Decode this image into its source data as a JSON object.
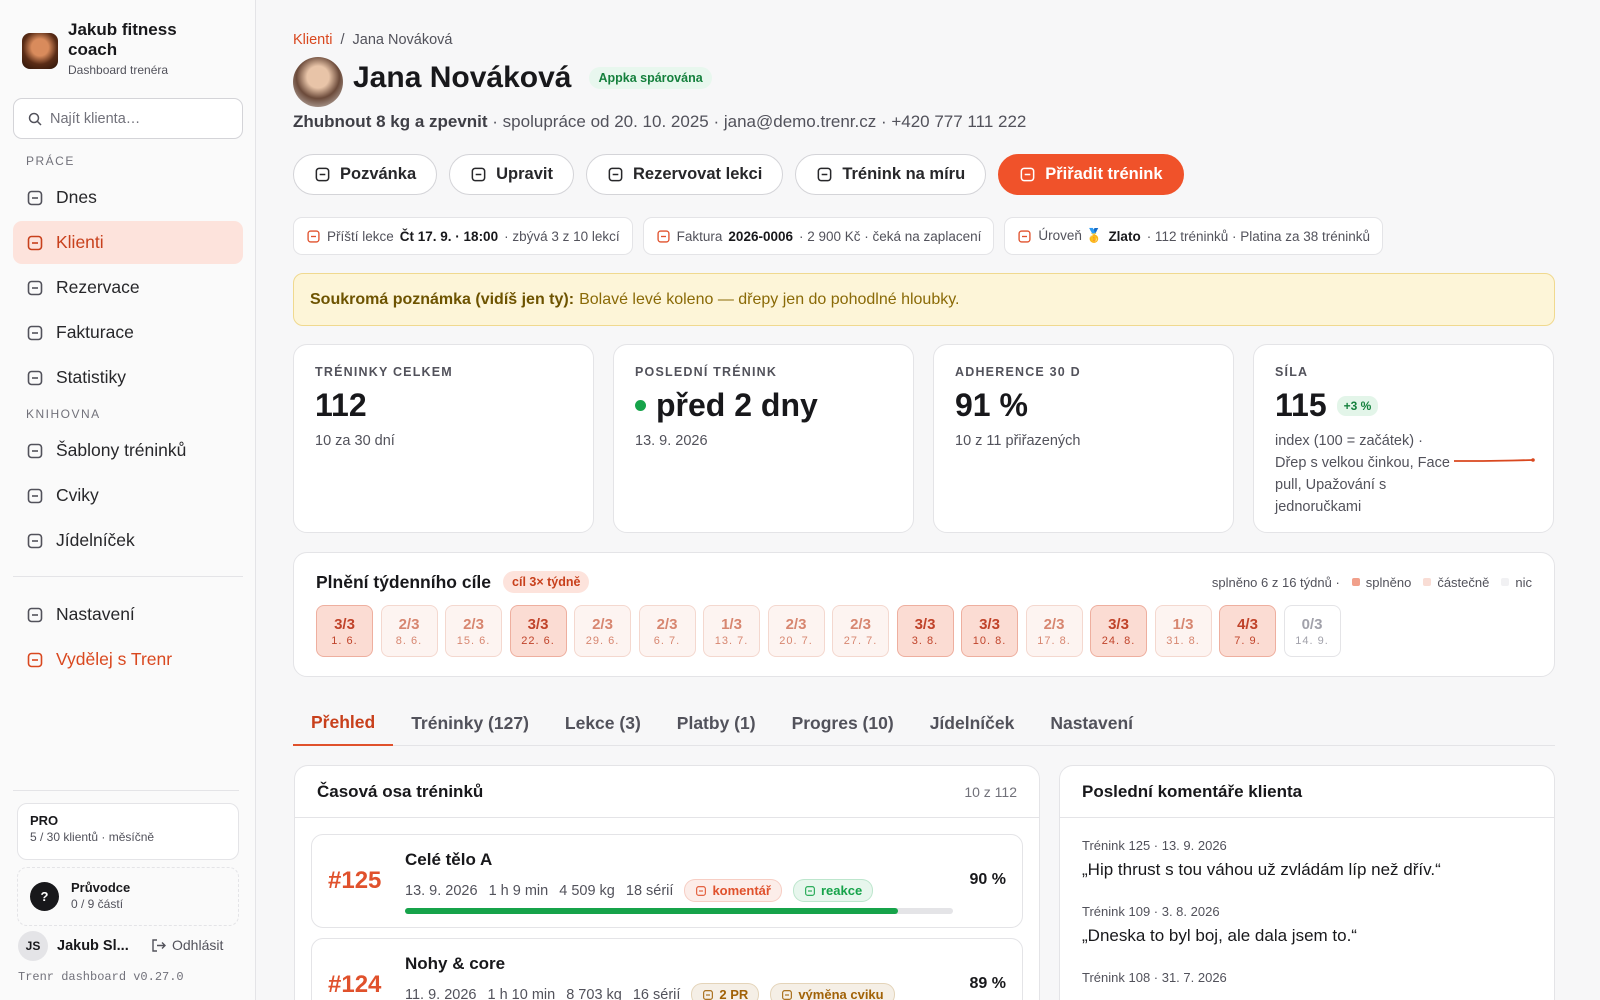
{
  "sidebar": {
    "brand": {
      "name": "Jakub fitness coach",
      "subtitle": "Dashboard trenéra"
    },
    "search_placeholder": "Najít klienta…",
    "sections": [
      {
        "title": "PRÁCE",
        "items": [
          {
            "label": "Dnes"
          },
          {
            "label": "Klienti",
            "active": true
          },
          {
            "label": "Rezervace"
          },
          {
            "label": "Fakturace"
          },
          {
            "label": "Statistiky"
          }
        ]
      },
      {
        "title": "KNIHOVNA",
        "items": [
          {
            "label": "Šablony tréninků"
          },
          {
            "label": "Cviky"
          },
          {
            "label": "Jídelníček"
          }
        ]
      }
    ],
    "footer_items": [
      {
        "label": "Nastavení"
      },
      {
        "label": "Vydělej s Trenr",
        "color": "#d9481f"
      }
    ],
    "plan": {
      "name": "PRO",
      "detail": "5 / 30 klientů · měsíčně"
    },
    "guide": {
      "icon": "?",
      "title": "Průvodce",
      "detail": "0 / 9 částí"
    },
    "user": {
      "initials": "JS",
      "name": "Jakub Sl...",
      "logout": "Odhlásit"
    },
    "version": "Trenr dashboard v0.27.0"
  },
  "breadcrumb": [
    "Klienti",
    "/",
    "Jana Nováková"
  ],
  "client": {
    "name": "Jana Nováková",
    "badge": "Appka spárována",
    "goal": "Zhubnout 8 kg a zpevnit",
    "meta": "· spolupráce od 20. 10. 2025 · jana@demo.trenr.cz · +420 777 111 222"
  },
  "actions": [
    {
      "label": "Pozvánka"
    },
    {
      "label": "Upravit"
    },
    {
      "label": "Rezervovat lekci"
    },
    {
      "label": "Trénink na míru"
    },
    {
      "label": "Přiřadit trénink",
      "primary": true
    }
  ],
  "chips": [
    {
      "label": "Příští lekce",
      "value": "Čt 17. 9. · 18:00",
      "detail": "· zbývá 3 z 10 lekcí"
    },
    {
      "label": "Faktura",
      "value": "2026-0006",
      "detail": "· 2 900 Kč · čeká na zaplacení"
    },
    {
      "label": "Úroveň 🥇",
      "value": "Zlato",
      "detail": "· 112 tréninků · Platina za 38 tréninků"
    }
  ],
  "note": {
    "label": "Soukromá poznámka (vidíš jen ty):",
    "text": "Bolavé levé koleno — dřepy jen do pohodlné hloubky."
  },
  "stats": [
    {
      "label": "TRÉNINKY CELKEM",
      "value": "112",
      "sub": "10 za 30 dní"
    },
    {
      "label": "POSLEDNÍ TRÉNINK",
      "value": "před 2 dny",
      "sub": "13. 9. 2026",
      "dot": true
    },
    {
      "label": "ADHERENCE 30 D",
      "value": "91 %",
      "sub": "10 z 11 přiřazených"
    },
    {
      "label": "SÍLA",
      "value": "115",
      "delta": "+3 %",
      "sub": "index (100 = začátek) · Dřep s velkou činkou, Face pull, Upažování s jednoručkami",
      "sparkline": true
    }
  ],
  "weekly": {
    "title": "Plnění týdenního cíle",
    "badge": "cíl 3× týdně",
    "summary": "splněno 6 z 16 týdnů ·",
    "legend": [
      "splněno",
      "částečně",
      "nic"
    ],
    "weeks": [
      {
        "score": "3/3",
        "date": "1. 6."
      },
      {
        "score": "2/3",
        "date": "8. 6."
      },
      {
        "score": "2/3",
        "date": "15. 6."
      },
      {
        "score": "3/3",
        "date": "22. 6."
      },
      {
        "score": "2/3",
        "date": "29. 6."
      },
      {
        "score": "2/3",
        "date": "6. 7."
      },
      {
        "score": "1/3",
        "date": "13. 7."
      },
      {
        "score": "2/3",
        "date": "20. 7."
      },
      {
        "score": "2/3",
        "date": "27. 7."
      },
      {
        "score": "3/3",
        "date": "3. 8."
      },
      {
        "score": "3/3",
        "date": "10. 8."
      },
      {
        "score": "2/3",
        "date": "17. 8."
      },
      {
        "score": "3/3",
        "date": "24. 8."
      },
      {
        "score": "1/3",
        "date": "31. 8."
      },
      {
        "score": "4/3",
        "date": "7. 9."
      },
      {
        "score": "0/3",
        "date": "14. 9."
      }
    ]
  },
  "tabs": [
    {
      "label": "Přehled",
      "active": true
    },
    {
      "label": "Tréninky (127)"
    },
    {
      "label": "Lekce (3)"
    },
    {
      "label": "Platby (1)"
    },
    {
      "label": "Progres (10)"
    },
    {
      "label": "Jídelníček"
    },
    {
      "label": "Nastavení"
    }
  ],
  "timeline": {
    "title": "Časová osa tréninků",
    "count": "10 z 112",
    "items": [
      {
        "id": "#125",
        "title": "Celé tělo A",
        "date": "13. 9. 2026",
        "duration": "1 h 9 min",
        "volume": "4 509 kg",
        "sets": "18 sérií",
        "tags": [
          {
            "text": "komentář",
            "color": "#e0512c"
          },
          {
            "text": "reakce",
            "color": "#16a34a"
          }
        ],
        "completion": 90,
        "completion_label": "90 %"
      },
      {
        "id": "#124",
        "title": "Nohy & core",
        "date": "11. 9. 2026",
        "duration": "1 h 10 min",
        "volume": "8 703 kg",
        "sets": "16 sérií",
        "tags": [
          {
            "text": "2 PR",
            "color": "#a16207"
          },
          {
            "text": "výměna cviku",
            "color": "#a16207"
          }
        ],
        "completion": 89,
        "completion_label": "89 %"
      }
    ]
  },
  "comments": {
    "title": "Poslední komentáře klienta",
    "items": [
      {
        "meta": "Trénink 125 · 13. 9. 2026",
        "text": "„Hip thrust s tou váhou už zvládám líp než dřív.“"
      },
      {
        "meta": "Trénink 109 · 3. 8. 2026",
        "text": "„Dneska to byl boj, ale dala jsem to.“"
      },
      {
        "meta": "Trénink 108 · 31. 7. 2026"
      }
    ]
  }
}
